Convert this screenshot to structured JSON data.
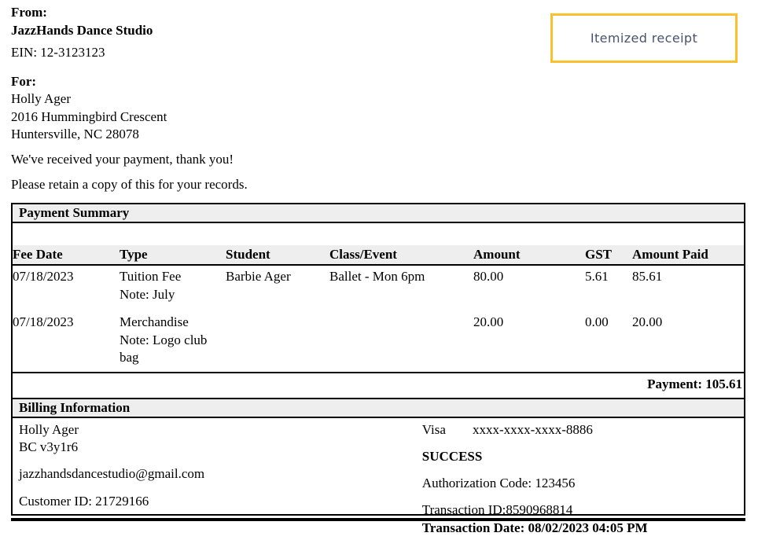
{
  "from_section": {
    "label": "From:",
    "company": "JazzHands Dance Studio",
    "ein": "EIN: 12-3123123"
  },
  "badge": {
    "label": "Itemized receipt"
  },
  "for_section": {
    "label": "For:",
    "name": "Holly Ager",
    "address1": "2016 Hummingbird Crescent",
    "address2": "Huntersville, NC 28078"
  },
  "messages": {
    "thanks": "We've received your payment, thank you!",
    "retain": "Please retain a copy of this for your records."
  },
  "payment_summary": {
    "title": "Payment Summary",
    "columns": [
      "Fee Date",
      "Type",
      "Student",
      "Class/Event",
      "Amount",
      "GST",
      "Amount Paid"
    ],
    "rows": [
      {
        "fee_date": "07/18/2023",
        "type": "Tuition Fee",
        "note": "Note: July",
        "student": "Barbie Ager",
        "class_event": "Ballet - Mon 6pm",
        "amount": "80.00",
        "gst": "5.61",
        "amount_paid": "85.61"
      },
      {
        "fee_date": "07/18/2023",
        "type": "Merchandise",
        "note": "Note: Logo club bag",
        "student": "",
        "class_event": "",
        "amount": "20.00",
        "gst": "0.00",
        "amount_paid": "20.00"
      }
    ],
    "total_label": "Payment: 105.61"
  },
  "billing": {
    "title": "Billing Information",
    "name": "Holly Ager",
    "region": "BC v3y1r6",
    "email": "jazzhandsdancestudio@gmail.com",
    "customer_id": "Customer ID: 21729166",
    "card_type": "Visa",
    "card_number": "xxxx-xxxx-xxxx-8886",
    "status": "SUCCESS",
    "auth_code": "Authorization Code: 123456",
    "transaction_id": "Transaction ID:8590968814",
    "transaction_date": "Transaction Date: 08/02/2023 04:05 PM"
  },
  "colors": {
    "badge_border": "#FBC12D",
    "badge_text": "#47536E",
    "section_bar_bg": "#EEEEEE"
  }
}
